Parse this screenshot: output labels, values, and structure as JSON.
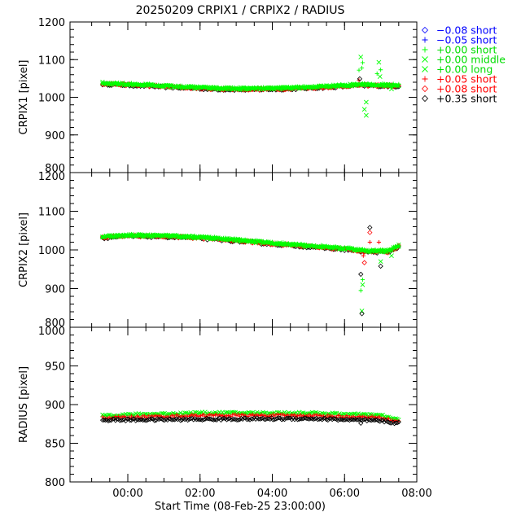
{
  "colors": {
    "background": "#ffffff",
    "axis": "#000000",
    "blue": "#0000ff",
    "green": "#00ff00",
    "red": "#ff0000",
    "black": "#000000"
  },
  "chart_data": {
    "type": "scatter",
    "title": "20250209  CRPIX1 / CRPIX2 / RADIUS",
    "xlabel": "Start Time (08-Feb-25 23:00:00)",
    "xlim": [
      -0.6,
      9.0
    ],
    "xticks": [
      {
        "value": 1,
        "label": "00:00"
      },
      {
        "value": 3,
        "label": "02:00"
      },
      {
        "value": 5,
        "label": "04:00"
      },
      {
        "value": 7,
        "label": "06:00"
      },
      {
        "value": 9,
        "label": "08:00"
      }
    ],
    "legend": {
      "position": "top-right",
      "entries": [
        {
          "symbol": "diamond",
          "color": "#0000ff",
          "label": "−0.08 short"
        },
        {
          "symbol": "plus",
          "color": "#0000ff",
          "label": "−0.05 short"
        },
        {
          "symbol": "plus",
          "color": "#00ff00",
          "label": "+0.00 short"
        },
        {
          "symbol": "cross",
          "color": "#00ff00",
          "label": "+0.00 middle"
        },
        {
          "symbol": "cross",
          "color": "#00ff00",
          "label": "+0.00 long"
        },
        {
          "symbol": "plus",
          "color": "#ff0000",
          "label": "+0.05 short"
        },
        {
          "symbol": "diamond",
          "color": "#ff0000",
          "label": "+0.08 short"
        },
        {
          "symbol": "diamond",
          "color": "#000000",
          "label": "+0.35 short"
        }
      ]
    },
    "panels": [
      {
        "ylabel": "CRPIX1 [pixel]",
        "ylim": [
          800,
          1200
        ],
        "yticks": [
          800,
          900,
          1000,
          1100,
          1200
        ],
        "trend": [
          [
            0.3,
            1037
          ],
          [
            1.5,
            1032
          ],
          [
            2.5,
            1027
          ],
          [
            3.5,
            1023
          ],
          [
            4.5,
            1022
          ],
          [
            5.5,
            1024
          ],
          [
            6.5,
            1028
          ],
          [
            7.4,
            1033
          ],
          [
            8.0,
            1032
          ],
          [
            8.5,
            1031
          ]
        ],
        "spread": 3,
        "outliers": [
          {
            "x": 7.45,
            "y": 1107,
            "symbol": "cross",
            "color": "#00ff00"
          },
          {
            "x": 7.5,
            "y": 1092,
            "symbol": "plus",
            "color": "#00ff00"
          },
          {
            "x": 7.48,
            "y": 1078,
            "symbol": "plus",
            "color": "#00ff00"
          },
          {
            "x": 7.4,
            "y": 1072,
            "symbol": "plus",
            "color": "#00ff00"
          },
          {
            "x": 7.6,
            "y": 987,
            "symbol": "cross",
            "color": "#00ff00"
          },
          {
            "x": 7.55,
            "y": 968,
            "symbol": "cross",
            "color": "#00ff00"
          },
          {
            "x": 7.6,
            "y": 952,
            "symbol": "cross",
            "color": "#00ff00"
          },
          {
            "x": 7.95,
            "y": 1093,
            "symbol": "cross",
            "color": "#00ff00"
          },
          {
            "x": 8.0,
            "y": 1073,
            "symbol": "plus",
            "color": "#00ff00"
          },
          {
            "x": 7.9,
            "y": 1063,
            "symbol": "plus",
            "color": "#00ff00"
          },
          {
            "x": 7.98,
            "y": 1055,
            "symbol": "cross",
            "color": "#00ff00"
          },
          {
            "x": 7.4,
            "y": 1045,
            "symbol": "plus",
            "color": "#ff0000"
          },
          {
            "x": 7.42,
            "y": 1049,
            "symbol": "diamond",
            "color": "#000000"
          },
          {
            "x": 8.3,
            "y": 1022,
            "symbol": "cross",
            "color": "#00ff00"
          }
        ]
      },
      {
        "ylabel": "CRPIX2 [pixel]",
        "ylim": [
          800,
          1200
        ],
        "yticks": [
          800,
          900,
          1000,
          1100,
          1200
        ],
        "trend": [
          [
            0.3,
            1033
          ],
          [
            1.0,
            1037
          ],
          [
            2.0,
            1036
          ],
          [
            3.0,
            1032
          ],
          [
            4.0,
            1025
          ],
          [
            5.0,
            1017
          ],
          [
            6.0,
            1010
          ],
          [
            7.0,
            1003
          ],
          [
            7.6,
            997
          ],
          [
            8.2,
            996
          ],
          [
            8.5,
            1010
          ]
        ],
        "spread": 3,
        "outliers": [
          {
            "x": 7.45,
            "y": 937,
            "symbol": "diamond",
            "color": "#000000"
          },
          {
            "x": 7.5,
            "y": 923,
            "symbol": "plus",
            "color": "#00ff00"
          },
          {
            "x": 7.5,
            "y": 910,
            "symbol": "cross",
            "color": "#00ff00"
          },
          {
            "x": 7.45,
            "y": 895,
            "symbol": "plus",
            "color": "#00ff00"
          },
          {
            "x": 7.48,
            "y": 842,
            "symbol": "cross",
            "color": "#00ff00"
          },
          {
            "x": 7.48,
            "y": 835,
            "symbol": "diamond",
            "color": "#000000"
          },
          {
            "x": 7.55,
            "y": 967,
            "symbol": "diamond",
            "color": "#ff0000"
          },
          {
            "x": 7.52,
            "y": 985,
            "symbol": "plus",
            "color": "#ff0000"
          },
          {
            "x": 7.7,
            "y": 1058,
            "symbol": "diamond",
            "color": "#000000"
          },
          {
            "x": 7.7,
            "y": 1045,
            "symbol": "diamond",
            "color": "#ff0000"
          },
          {
            "x": 7.7,
            "y": 1020,
            "symbol": "plus",
            "color": "#ff0000"
          },
          {
            "x": 7.95,
            "y": 1020,
            "symbol": "plus",
            "color": "#ff0000"
          },
          {
            "x": 8.0,
            "y": 958,
            "symbol": "diamond",
            "color": "#000000"
          },
          {
            "x": 8.0,
            "y": 970,
            "symbol": "cross",
            "color": "#00ff00"
          },
          {
            "x": 8.3,
            "y": 985,
            "symbol": "cross",
            "color": "#00ff00"
          }
        ]
      },
      {
        "ylabel": "RADIUS [pixel]",
        "ylim": [
          800,
          1000
        ],
        "yticks": [
          800,
          850,
          900,
          950,
          1000
        ],
        "trend": null,
        "series_levels": [
          {
            "color": "#00ff00",
            "symbol": "cross",
            "y": [
              [
                0.3,
                886
              ],
              [
                3.0,
                889
              ],
              [
                6.0,
                889
              ],
              [
                8.0,
                886
              ],
              [
                8.5,
                880
              ]
            ]
          },
          {
            "color": "#ff0000",
            "symbol": "plus",
            "y": [
              [
                0.3,
                883
              ],
              [
                3.0,
                886
              ],
              [
                6.0,
                886
              ],
              [
                8.0,
                883
              ],
              [
                8.5,
                878
              ]
            ]
          },
          {
            "color": "#000000",
            "symbol": "diamond",
            "y": [
              [
                0.3,
                880
              ],
              [
                3.0,
                881
              ],
              [
                6.0,
                882
              ],
              [
                8.0,
                879
              ],
              [
                8.5,
                876
              ]
            ]
          }
        ],
        "spread": 1.5,
        "outliers": [
          {
            "x": 7.45,
            "y": 876,
            "symbol": "diamond",
            "color": "#000000"
          }
        ]
      }
    ]
  }
}
